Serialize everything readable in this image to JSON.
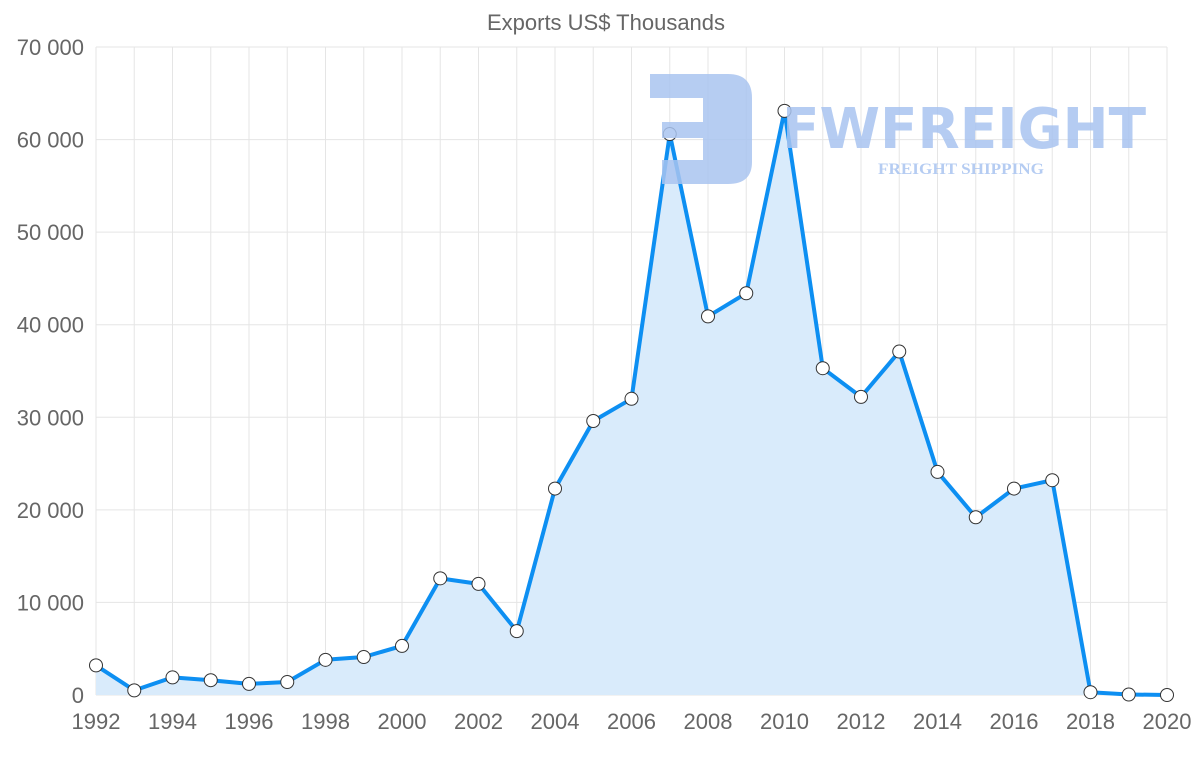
{
  "chart_data": {
    "type": "area",
    "title": "Exports US$ Thousands",
    "xlabel": "",
    "ylabel": "",
    "x": [
      1992,
      1993,
      1994,
      1995,
      1996,
      1997,
      1998,
      1999,
      2000,
      2001,
      2002,
      2003,
      2004,
      2005,
      2006,
      2007,
      2008,
      2009,
      2010,
      2011,
      2012,
      2013,
      2014,
      2015,
      2016,
      2017,
      2018,
      2019,
      2020
    ],
    "series": [
      {
        "name": "Exports US$ Thousands",
        "values": [
          3200,
          500,
          1900,
          1600,
          1200,
          1400,
          3800,
          4100,
          5300,
          12600,
          12000,
          6900,
          22300,
          29600,
          32000,
          60600,
          40900,
          43400,
          63100,
          35300,
          32200,
          37100,
          24100,
          19200,
          22300,
          23200,
          300,
          50,
          0
        ]
      }
    ],
    "ylim": [
      0,
      70000
    ],
    "xlim": [
      1992,
      2020
    ],
    "y_ticks": [
      "0",
      "10 000",
      "20 000",
      "30 000",
      "40 000",
      "50 000",
      "60 000",
      "70 000"
    ],
    "x_ticks": [
      "1992",
      "1994",
      "1996",
      "1998",
      "2000",
      "2002",
      "2004",
      "2006",
      "2008",
      "2010",
      "2012",
      "2014",
      "2016",
      "2018",
      "2020"
    ],
    "grid": true,
    "legend": "none",
    "colors": {
      "line": "#0d8ff2",
      "fill": "#d9ebfb",
      "point_fill": "#ffffff",
      "point_stroke": "#333333",
      "grid": "#e5e5e5"
    }
  },
  "watermark": {
    "brand": "FWFREIGHT",
    "tagline": "FREIGHT SHIPPING",
    "color": "#a9c4f0"
  }
}
